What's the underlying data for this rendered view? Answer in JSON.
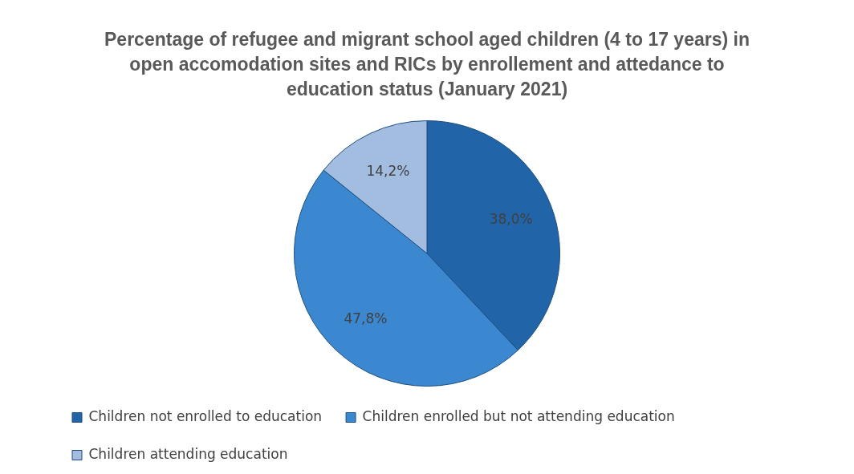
{
  "chart_data": {
    "type": "pie",
    "title": "Percentage of refugee and migrant school aged children (4 to 17 years) in open accomodation sites and RICs by enrollement and attedance to education status (January 2021)",
    "categories": [
      "Children not enrolled to education",
      "Children enrolled but not attending education",
      "Children attending education"
    ],
    "values": [
      38.0,
      47.8,
      14.2
    ],
    "colors": [
      "#2165a8",
      "#3c88d0",
      "#a3bde0"
    ],
    "value_labels": [
      "38,0%",
      "47,8%",
      "14,2%"
    ],
    "legend": "bottom"
  }
}
